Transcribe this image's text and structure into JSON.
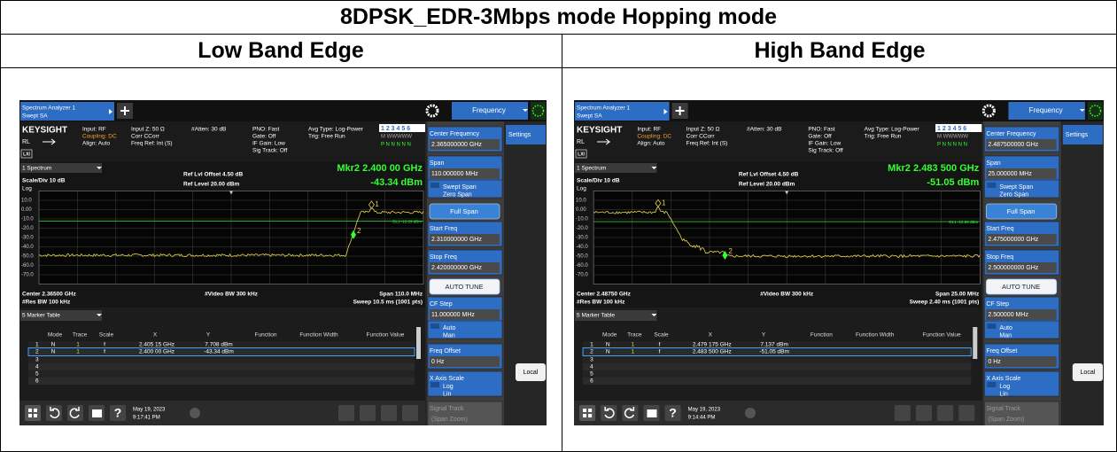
{
  "title": "8DPSK_EDR-3Mbps mode Hopping mode",
  "columns": [
    {
      "heading": "Low Band Edge",
      "screen": {
        "tab": [
          "Spectrum Analyzer 1",
          "Swept SA"
        ],
        "menu": "Frequency",
        "brand": "KEYSIGHT",
        "status": [
          [
            "Input: RF",
            "Coupling: DC",
            "Align: Auto"
          ],
          [
            "Input Z: 50 Ω",
            "Corr CCorr",
            "Freq Ref: Int (S)"
          ],
          [
            "#Atten: 30 dB"
          ],
          [
            "PNO: Fast",
            "Gate: Off",
            "IF Gain: Low",
            "Sig Track: Off"
          ],
          [
            "Avg Type: Log-Power",
            "Trig: Free Run"
          ]
        ],
        "rl": "RL",
        "lxi": "LXI",
        "traces": [
          "1 2 3 4 5 6",
          "M WWWWW",
          "P N N N N N"
        ],
        "window": "1 Spectrum",
        "scale": "Scale/Div 10 dB",
        "log": "Log",
        "ref": [
          "Ref Lvl Offset 4.50 dB",
          "Ref Level 20.00 dBm"
        ],
        "marker": [
          "Mkr2  2.400 00 GHz",
          "-43.34 dBm"
        ],
        "ylabels": [
          "10.0",
          "0.00",
          "-10.0",
          "-20.0",
          "-30.0",
          "-40.0",
          "-50.0",
          "-60.0",
          "-70.0"
        ],
        "dl": "DL1 -12.29 dBm",
        "marker_ids": [
          "1",
          "2"
        ],
        "footer_left": [
          "Center 2.36500 GHz",
          "#Res BW 100 kHz"
        ],
        "footer_mid": "#Video BW 300 kHz",
        "footer_right": [
          "Span 110.0 MHz",
          "Sweep 10.5 ms (1001 pts)"
        ],
        "table_title": "5 Marker Table",
        "table_header": [
          "Mode",
          "Trace",
          "Scale",
          "X",
          "Y",
          "Function",
          "Function Width",
          "Function Value"
        ],
        "table_rows": [
          [
            "1",
            "N",
            "1",
            "f",
            "2.405 15 GHz",
            "7.708 dBm"
          ],
          [
            "2",
            "N",
            "1",
            "f",
            "2.400 00 GHz",
            "-43.34 dBm"
          ],
          [
            "3"
          ],
          [
            "4"
          ],
          [
            "5"
          ],
          [
            "6"
          ]
        ],
        "softkeys": [
          {
            "label": "Center Frequency",
            "value": "2.365000000 GHz"
          },
          {
            "label": "Span",
            "value": "110.000000 MHz"
          },
          {
            "options": [
              "Swept Span",
              "Zero Span"
            ]
          },
          {
            "button": "Full Span"
          },
          {
            "label": "Start Freq",
            "value": "2.310000000 GHz"
          },
          {
            "label": "Stop Freq",
            "value": "2.420000000 GHz"
          },
          {
            "button": "AUTO TUNE"
          },
          {
            "label": "CF Step",
            "value": "11.000000 MHz"
          },
          {
            "options": [
              "Auto",
              "Man"
            ]
          },
          {
            "label": "Freq Offset",
            "value": "0 Hz"
          },
          {
            "label": "X Axis Scale",
            "options": [
              "Log",
              "Lin"
            ]
          },
          {
            "label": "Signal Track",
            "value": "(Span Zoom)"
          }
        ],
        "side": [
          "Settings",
          "Local"
        ],
        "date": "May 19, 2023",
        "time": "9:17:41 PM"
      }
    },
    {
      "heading": "High Band Edge",
      "screen": {
        "tab": [
          "Spectrum Analyzer 1",
          "Swept SA"
        ],
        "menu": "Frequency",
        "brand": "KEYSIGHT",
        "status": [
          [
            "Input: RF",
            "Coupling: DC",
            "Align: Auto"
          ],
          [
            "Input Z: 50 Ω",
            "Corr CCorr",
            "Freq Ref: Int (S)"
          ],
          [
            "#Atten: 30 dB"
          ],
          [
            "PNO: Fast",
            "Gate: Off",
            "IF Gain: Low",
            "Sig Track: Off"
          ],
          [
            "Avg Type: Log-Power",
            "Trig: Free Run"
          ]
        ],
        "rl": "RL",
        "lxi": "LXI",
        "traces": [
          "1 2 3 4 5 6",
          "M WWWWW",
          "P N N N N N"
        ],
        "window": "1 Spectrum",
        "scale": "Scale/Div 10 dB",
        "log": "Log",
        "ref": [
          "Ref Lvl Offset 4.50 dB",
          "Ref Level 20.00 dBm"
        ],
        "marker": [
          "Mkr2  2.483 500 GHz",
          "-51.05 dBm"
        ],
        "ylabels": [
          "10.0",
          "0.00",
          "-10.0",
          "-20.0",
          "-30.0",
          "-40.0",
          "-50.0",
          "-60.0",
          "-70.0"
        ],
        "dl": "DL1 -12.86 dBm",
        "marker_ids": [
          "1",
          "2"
        ],
        "footer_left": [
          "Center 2.48750 GHz",
          "#Res BW 100 kHz"
        ],
        "footer_mid": "#Video BW 300 kHz",
        "footer_right": [
          "Span 25.00 MHz",
          "Sweep 2.40 ms (1001 pts)"
        ],
        "table_title": "5 Marker Table",
        "table_header": [
          "Mode",
          "Trace",
          "Scale",
          "X",
          "Y",
          "Function",
          "Function Width",
          "Function Value"
        ],
        "table_rows": [
          [
            "1",
            "N",
            "1",
            "f",
            "2.479 175 GHz",
            "7.137 dBm"
          ],
          [
            "2",
            "N",
            "1",
            "f",
            "2.483 500 GHz",
            "-51.05 dBm"
          ],
          [
            "3"
          ],
          [
            "4"
          ],
          [
            "5"
          ],
          [
            "6"
          ]
        ],
        "softkeys": [
          {
            "label": "Center Frequency",
            "value": "2.487500000 GHz"
          },
          {
            "label": "Span",
            "value": "25.000000 MHz"
          },
          {
            "options": [
              "Swept Span",
              "Zero Span"
            ]
          },
          {
            "button": "Full Span"
          },
          {
            "label": "Start Freq",
            "value": "2.475000000 GHz"
          },
          {
            "label": "Stop Freq",
            "value": "2.500000000 GHz"
          },
          {
            "button": "AUTO TUNE"
          },
          {
            "label": "CF Step",
            "value": "2.500000 MHz"
          },
          {
            "options": [
              "Auto",
              "Man"
            ]
          },
          {
            "label": "Freq Offset",
            "value": "0 Hz"
          },
          {
            "label": "X Axis Scale",
            "options": [
              "Log",
              "Lin"
            ]
          },
          {
            "label": "Signal Track",
            "value": "(Span Zoom)"
          }
        ],
        "side": [
          "Settings",
          "Local"
        ],
        "date": "May 19, 2023",
        "time": "9:14:44 PM"
      }
    }
  ]
}
